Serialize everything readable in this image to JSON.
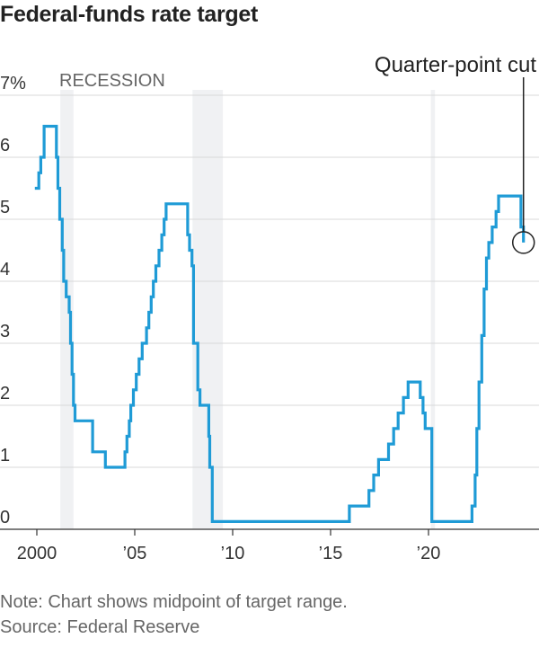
{
  "title": "Federal-funds rate target",
  "note": "Note: Chart shows midpoint of target range.",
  "source": "Source: Federal Reserve",
  "chart_data": {
    "type": "line",
    "title": "Federal-funds rate target",
    "xlabel": "",
    "ylabel": "",
    "xlim": [
      1999.75,
      2025.6
    ],
    "ylim": [
      0,
      7
    ],
    "y_ticks": [
      {
        "value": 0,
        "label": "0"
      },
      {
        "value": 1,
        "label": "1"
      },
      {
        "value": 2,
        "label": "2"
      },
      {
        "value": 3,
        "label": "3"
      },
      {
        "value": 4,
        "label": "4"
      },
      {
        "value": 5,
        "label": "5"
      },
      {
        "value": 6,
        "label": "6"
      },
      {
        "value": 7,
        "label": "7%"
      }
    ],
    "x_ticks": [
      {
        "value": 2000,
        "label": "2000"
      },
      {
        "value": 2005,
        "label": "’05"
      },
      {
        "value": 2010,
        "label": "’10"
      },
      {
        "value": 2015,
        "label": "’15"
      },
      {
        "value": 2020,
        "label": "’20"
      }
    ],
    "grid": true,
    "line_color": "#1f9bd6",
    "recession_color": "#f0f1f3",
    "recession_label": "RECESSION",
    "recessions": [
      {
        "start": 2001.2,
        "end": 2001.87
      },
      {
        "start": 2007.95,
        "end": 2009.5
      },
      {
        "start": 2020.12,
        "end": 2020.33
      }
    ],
    "annotation": {
      "label": "Quarter-point cut",
      "x": 2024.85,
      "y": 4.625
    },
    "series": [
      {
        "step": true,
        "points": [
          [
            1999.9,
            5.5
          ],
          [
            2000.1,
            5.75
          ],
          [
            2000.2,
            6.0
          ],
          [
            2000.37,
            6.5
          ],
          [
            2001.0,
            6.0
          ],
          [
            2001.08,
            5.5
          ],
          [
            2001.17,
            5.0
          ],
          [
            2001.3,
            4.5
          ],
          [
            2001.37,
            4.0
          ],
          [
            2001.5,
            3.75
          ],
          [
            2001.65,
            3.5
          ],
          [
            2001.72,
            3.0
          ],
          [
            2001.8,
            2.5
          ],
          [
            2001.87,
            2.0
          ],
          [
            2001.95,
            1.75
          ],
          [
            2002.85,
            1.25
          ],
          [
            2003.5,
            1.0
          ],
          [
            2004.5,
            1.25
          ],
          [
            2004.6,
            1.5
          ],
          [
            2004.72,
            1.75
          ],
          [
            2004.8,
            2.0
          ],
          [
            2004.93,
            2.25
          ],
          [
            2005.08,
            2.5
          ],
          [
            2005.22,
            2.75
          ],
          [
            2005.38,
            3.0
          ],
          [
            2005.6,
            3.25
          ],
          [
            2005.72,
            3.5
          ],
          [
            2005.84,
            3.75
          ],
          [
            2005.95,
            4.0
          ],
          [
            2006.08,
            4.25
          ],
          [
            2006.24,
            4.5
          ],
          [
            2006.38,
            4.75
          ],
          [
            2006.5,
            5.0
          ],
          [
            2006.6,
            5.25
          ],
          [
            2007.7,
            4.75
          ],
          [
            2007.8,
            4.5
          ],
          [
            2007.92,
            4.25
          ],
          [
            2008.0,
            3.0
          ],
          [
            2008.22,
            2.25
          ],
          [
            2008.33,
            2.0
          ],
          [
            2008.78,
            1.5
          ],
          [
            2008.83,
            1.0
          ],
          [
            2008.96,
            0.125
          ],
          [
            2015.96,
            0.375
          ],
          [
            2016.96,
            0.625
          ],
          [
            2017.2,
            0.875
          ],
          [
            2017.45,
            1.125
          ],
          [
            2017.96,
            1.375
          ],
          [
            2018.22,
            1.625
          ],
          [
            2018.45,
            1.875
          ],
          [
            2018.72,
            2.125
          ],
          [
            2018.96,
            2.375
          ],
          [
            2019.58,
            2.125
          ],
          [
            2019.72,
            1.875
          ],
          [
            2019.83,
            1.625
          ],
          [
            2020.17,
            0.125
          ],
          [
            2022.22,
            0.375
          ],
          [
            2022.38,
            0.875
          ],
          [
            2022.47,
            1.625
          ],
          [
            2022.58,
            2.375
          ],
          [
            2022.72,
            3.125
          ],
          [
            2022.84,
            3.875
          ],
          [
            2022.96,
            4.375
          ],
          [
            2023.08,
            4.625
          ],
          [
            2023.25,
            4.875
          ],
          [
            2023.45,
            5.125
          ],
          [
            2023.58,
            5.375
          ],
          [
            2024.72,
            4.875
          ],
          [
            2024.85,
            4.625
          ]
        ]
      }
    ]
  }
}
